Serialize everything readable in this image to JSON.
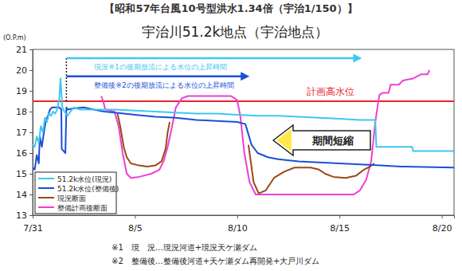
{
  "chart_data": {
    "type": "line",
    "title": "【昭和57年台風10号型洪水1.34倍（宇治1/150）】",
    "subtitle": "宇治川51.2k地点（宇治地点）",
    "y_label": "(O.P.m)",
    "xlim": [
      0,
      20.6
    ],
    "xticks": [
      {
        "value": 0,
        "label": "7/31"
      },
      {
        "value": 5,
        "label": "8/5"
      },
      {
        "value": 10,
        "label": "8/10"
      },
      {
        "value": 15,
        "label": "8/15"
      },
      {
        "value": 20,
        "label": "8/20"
      }
    ],
    "ylim": [
      13,
      21
    ],
    "yticks": [
      13,
      14,
      15,
      16,
      17,
      18,
      19,
      20,
      21
    ],
    "grid": false,
    "legend": "lower left",
    "series": [
      {
        "name": "51.2k水位(現況)",
        "color": "#3ec8f0",
        "x": [
          0,
          0.1,
          0.2,
          0.3,
          0.4,
          0.5,
          0.6,
          0.7,
          0.8,
          0.9,
          1.0,
          1.1,
          1.2,
          1.3,
          1.36,
          1.45,
          1.55,
          1.7,
          1.85,
          2.0,
          2.3,
          3,
          4,
          5,
          6,
          7,
          8,
          9,
          10,
          11,
          12,
          13,
          14,
          15,
          16,
          16.75,
          16.8,
          18.55,
          18.6,
          20.6
        ],
        "values": [
          16.4,
          16.3,
          16.8,
          16.5,
          17.3,
          17.0,
          17.7,
          17.5,
          17.9,
          17.8,
          18.0,
          17.9,
          18.1,
          18.6,
          19.6,
          18.2,
          18.0,
          17.8,
          18.0,
          18.2,
          18.1,
          18.1,
          18.1,
          18.05,
          18.0,
          17.95,
          17.9,
          17.9,
          17.85,
          17.8,
          17.8,
          17.75,
          17.7,
          17.65,
          17.6,
          17.6,
          16.3,
          16.3,
          16.1,
          16.1
        ]
      },
      {
        "name": "51.2k水位(整備後)",
        "color": "#1c4fd8",
        "x": [
          0,
          0.1,
          0.2,
          0.3,
          0.35,
          0.45,
          0.55,
          0.65,
          0.75,
          0.85,
          0.95,
          1.1,
          1.3,
          1.4,
          1.42,
          1.6,
          1.65,
          1.7,
          2.0,
          2.5,
          3,
          3.5,
          4,
          5,
          6,
          7,
          8,
          9,
          10,
          10.4,
          10.7,
          11,
          11.5,
          12,
          13,
          14,
          15,
          16,
          17,
          18,
          20.6
        ],
        "values": [
          15.3,
          15.2,
          15.9,
          15.5,
          16.8,
          16.3,
          17.0,
          17.6,
          17.8,
          18.1,
          18.2,
          18.2,
          18.2,
          18.1,
          16.2,
          16.0,
          18.2,
          18.1,
          18.15,
          18.2,
          18.1,
          18.0,
          17.95,
          17.85,
          17.75,
          17.7,
          17.6,
          17.55,
          17.5,
          17.4,
          16.4,
          16.0,
          15.8,
          15.7,
          15.6,
          15.55,
          15.5,
          15.45,
          15.4,
          15.35,
          15.3
        ]
      },
      {
        "name": "現況断面",
        "color": "#9a4a12",
        "x": [
          4.15,
          4.3,
          4.45,
          4.6,
          4.8,
          5.2,
          5.6,
          6.0,
          6.3,
          6.5,
          6.6,
          6.7,
          8.5,
          10.55,
          10.8,
          11.05,
          11.4,
          11.8,
          12.3,
          12.8,
          13.6,
          14.0,
          14.3,
          14.7,
          15.3,
          15.8,
          16.2,
          16.5,
          16.7
        ],
        "values": [
          17.9,
          17.2,
          16.3,
          15.8,
          15.5,
          15.4,
          15.35,
          15.4,
          15.6,
          16.2,
          17.0,
          17.5,
          null,
          16.4,
          14.6,
          14.05,
          14.2,
          14.8,
          15.1,
          15.3,
          15.3,
          15.2,
          15.0,
          14.85,
          14.8,
          14.9,
          15.2,
          15.35,
          15.5
        ]
      },
      {
        "name": "整備計画後断面",
        "color": "#ee3fd2",
        "x": [
          3.35,
          3.45,
          3.55,
          4.0,
          4.2,
          4.4,
          4.6,
          4.8,
          5.2,
          5.8,
          6.2,
          6.4,
          6.6,
          6.8,
          7.0,
          7.3,
          7.6,
          9.7,
          10.0,
          10.15,
          10.35,
          10.6,
          10.9,
          15.7,
          16.0,
          16.3,
          16.55,
          16.75,
          16.95,
          17.1,
          17.4,
          17.5,
          17.9,
          18.1,
          18.6,
          19.0,
          19.3,
          19.4
        ],
        "values": [
          18.75,
          18.5,
          18.1,
          18.0,
          17.3,
          16.0,
          15.0,
          14.8,
          14.85,
          15.0,
          15.2,
          15.6,
          16.3,
          17.2,
          18.2,
          18.65,
          18.75,
          18.75,
          18.55,
          17.8,
          16.0,
          14.6,
          14.0,
          14.0,
          14.2,
          14.7,
          15.6,
          17.5,
          18.8,
          18.9,
          18.9,
          19.3,
          19.3,
          19.5,
          19.6,
          19.8,
          19.8,
          20.0
        ]
      }
    ],
    "hlines": [
      {
        "value": 18.5,
        "label": "計画高水位",
        "color": "#e8262d"
      }
    ],
    "annotations": [
      {
        "text": "現況※1の後期放流による水位の上昇時間",
        "x": [
          1.65,
          16.1
        ],
        "y": 20.58,
        "color": "#3ec8f0"
      },
      {
        "text": "整備後※2の後期放流による水位の上昇時間",
        "x": [
          1.65,
          10.6
        ],
        "y": 19.7,
        "color": "#1c4fd8"
      },
      {
        "text": "期間短縮"
      }
    ],
    "notes": [
      "※1　現　況…現況河道+現況天ケ瀬ダム",
      "※2　整備後…整備後河道+天ケ瀬ダム再開発+大戸川ダム"
    ]
  }
}
